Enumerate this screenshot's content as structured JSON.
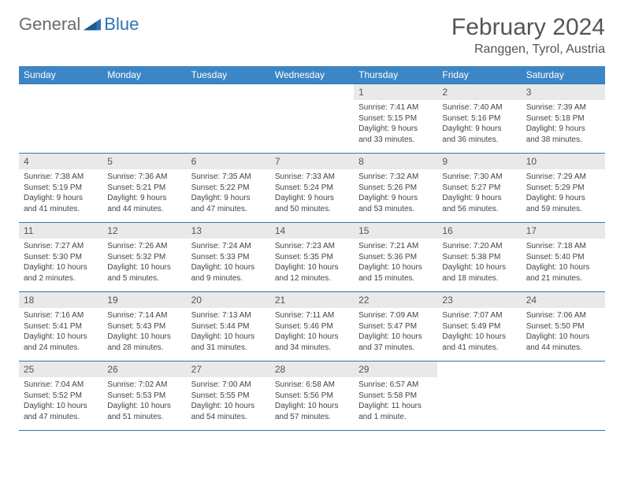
{
  "logo": {
    "text1": "General",
    "text2": "Blue"
  },
  "title": "February 2024",
  "location": "Ranggen, Tyrol, Austria",
  "colors": {
    "header_bg": "#3d86c6",
    "border": "#2f73b5",
    "daynum_bg": "#e9e9e9",
    "text": "#444"
  },
  "day_headers": [
    "Sunday",
    "Monday",
    "Tuesday",
    "Wednesday",
    "Thursday",
    "Friday",
    "Saturday"
  ],
  "weeks": [
    [
      null,
      null,
      null,
      null,
      {
        "n": "1",
        "sr": "7:41 AM",
        "ss": "5:15 PM",
        "dl": "9 hours and 33 minutes."
      },
      {
        "n": "2",
        "sr": "7:40 AM",
        "ss": "5:16 PM",
        "dl": "9 hours and 36 minutes."
      },
      {
        "n": "3",
        "sr": "7:39 AM",
        "ss": "5:18 PM",
        "dl": "9 hours and 38 minutes."
      }
    ],
    [
      {
        "n": "4",
        "sr": "7:38 AM",
        "ss": "5:19 PM",
        "dl": "9 hours and 41 minutes."
      },
      {
        "n": "5",
        "sr": "7:36 AM",
        "ss": "5:21 PM",
        "dl": "9 hours and 44 minutes."
      },
      {
        "n": "6",
        "sr": "7:35 AM",
        "ss": "5:22 PM",
        "dl": "9 hours and 47 minutes."
      },
      {
        "n": "7",
        "sr": "7:33 AM",
        "ss": "5:24 PM",
        "dl": "9 hours and 50 minutes."
      },
      {
        "n": "8",
        "sr": "7:32 AM",
        "ss": "5:26 PM",
        "dl": "9 hours and 53 minutes."
      },
      {
        "n": "9",
        "sr": "7:30 AM",
        "ss": "5:27 PM",
        "dl": "9 hours and 56 minutes."
      },
      {
        "n": "10",
        "sr": "7:29 AM",
        "ss": "5:29 PM",
        "dl": "9 hours and 59 minutes."
      }
    ],
    [
      {
        "n": "11",
        "sr": "7:27 AM",
        "ss": "5:30 PM",
        "dl": "10 hours and 2 minutes."
      },
      {
        "n": "12",
        "sr": "7:26 AM",
        "ss": "5:32 PM",
        "dl": "10 hours and 5 minutes."
      },
      {
        "n": "13",
        "sr": "7:24 AM",
        "ss": "5:33 PM",
        "dl": "10 hours and 9 minutes."
      },
      {
        "n": "14",
        "sr": "7:23 AM",
        "ss": "5:35 PM",
        "dl": "10 hours and 12 minutes."
      },
      {
        "n": "15",
        "sr": "7:21 AM",
        "ss": "5:36 PM",
        "dl": "10 hours and 15 minutes."
      },
      {
        "n": "16",
        "sr": "7:20 AM",
        "ss": "5:38 PM",
        "dl": "10 hours and 18 minutes."
      },
      {
        "n": "17",
        "sr": "7:18 AM",
        "ss": "5:40 PM",
        "dl": "10 hours and 21 minutes."
      }
    ],
    [
      {
        "n": "18",
        "sr": "7:16 AM",
        "ss": "5:41 PM",
        "dl": "10 hours and 24 minutes."
      },
      {
        "n": "19",
        "sr": "7:14 AM",
        "ss": "5:43 PM",
        "dl": "10 hours and 28 minutes."
      },
      {
        "n": "20",
        "sr": "7:13 AM",
        "ss": "5:44 PM",
        "dl": "10 hours and 31 minutes."
      },
      {
        "n": "21",
        "sr": "7:11 AM",
        "ss": "5:46 PM",
        "dl": "10 hours and 34 minutes."
      },
      {
        "n": "22",
        "sr": "7:09 AM",
        "ss": "5:47 PM",
        "dl": "10 hours and 37 minutes."
      },
      {
        "n": "23",
        "sr": "7:07 AM",
        "ss": "5:49 PM",
        "dl": "10 hours and 41 minutes."
      },
      {
        "n": "24",
        "sr": "7:06 AM",
        "ss": "5:50 PM",
        "dl": "10 hours and 44 minutes."
      }
    ],
    [
      {
        "n": "25",
        "sr": "7:04 AM",
        "ss": "5:52 PM",
        "dl": "10 hours and 47 minutes."
      },
      {
        "n": "26",
        "sr": "7:02 AM",
        "ss": "5:53 PM",
        "dl": "10 hours and 51 minutes."
      },
      {
        "n": "27",
        "sr": "7:00 AM",
        "ss": "5:55 PM",
        "dl": "10 hours and 54 minutes."
      },
      {
        "n": "28",
        "sr": "6:58 AM",
        "ss": "5:56 PM",
        "dl": "10 hours and 57 minutes."
      },
      {
        "n": "29",
        "sr": "6:57 AM",
        "ss": "5:58 PM",
        "dl": "11 hours and 1 minute."
      },
      null,
      null
    ]
  ],
  "labels": {
    "sunrise": "Sunrise:",
    "sunset": "Sunset:",
    "daylight": "Daylight:"
  }
}
